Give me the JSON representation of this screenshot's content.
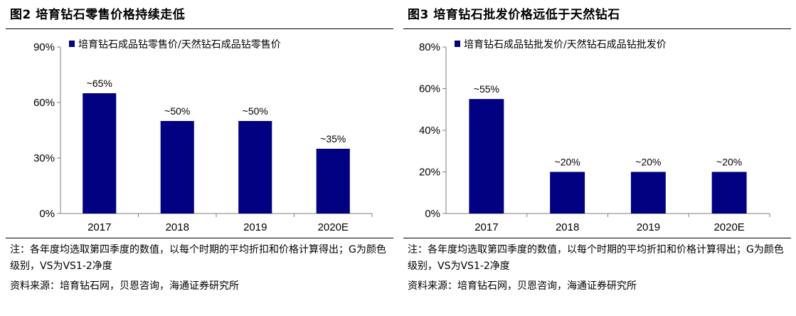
{
  "colors": {
    "bar": "#000080",
    "axis": "#7f7f7f"
  },
  "panels": [
    {
      "title": "图2  培育钻石零售价格持续走低",
      "note": "注：各年度均选取第四季度的数值，以每个时期的平均折扣和价格计算得出；G为颜色级别，VS为VS1-2净度",
      "source": "资料来源：培育钻石网，贝恩咨询，海通证券研究所"
    },
    {
      "title": "图3  培育钻石批发价格远低于天然钻石",
      "note": "注：各年度均选取第四季度的数值，以每个时期的平均折扣和价格计算得出；G为颜色级别，VS为VS1-2净度",
      "source": "资料来源：培育钻石网，贝恩咨询，海通证券研究所"
    }
  ],
  "chart_data": [
    {
      "type": "bar",
      "categories": [
        "2017",
        "2018",
        "2019",
        "2020E"
      ],
      "series": [
        {
          "name": "培育钻石成品钻零售价/天然钻石成品钻零售价",
          "values": [
            65,
            50,
            50,
            35
          ]
        }
      ],
      "data_labels": [
        "~65%",
        "~50%",
        "~50%",
        "~35%"
      ],
      "ylim": [
        0,
        90
      ],
      "yticks": [
        0,
        30,
        60,
        90
      ],
      "ytick_labels": [
        "0%",
        "30%",
        "60%",
        "90%"
      ],
      "legend": "top",
      "grid": false
    },
    {
      "type": "bar",
      "categories": [
        "2017",
        "2018",
        "2019",
        "2020E"
      ],
      "series": [
        {
          "name": "培育钻石成品钻批发价/天然钻石成品钻批发价",
          "values": [
            55,
            20,
            20,
            20
          ]
        }
      ],
      "data_labels": [
        "~55%",
        "~20%",
        "~20%",
        "~20%"
      ],
      "ylim": [
        0,
        80
      ],
      "yticks": [
        0,
        20,
        40,
        60,
        80
      ],
      "ytick_labels": [
        "0%",
        "20%",
        "40%",
        "60%",
        "80%"
      ],
      "legend": "top",
      "grid": false
    }
  ]
}
